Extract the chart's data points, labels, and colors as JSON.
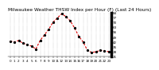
{
  "title": "Milwaukee Weather THSW Index per Hour (F) (Last 24 Hours)",
  "hours": [
    0,
    1,
    2,
    3,
    4,
    5,
    6,
    7,
    8,
    9,
    10,
    11,
    12,
    13,
    14,
    15,
    16,
    17,
    18,
    19,
    20,
    21,
    22,
    23
  ],
  "values": [
    43,
    42,
    44,
    40,
    38,
    36,
    32,
    44,
    52,
    60,
    70,
    76,
    82,
    78,
    72,
    62,
    50,
    42,
    30,
    27,
    28,
    30,
    29,
    28
  ],
  "ylim": [
    21,
    84
  ],
  "yticks": [
    21,
    28,
    35,
    42,
    49,
    56,
    63,
    70,
    77,
    84
  ],
  "xticks": [
    0,
    1,
    2,
    3,
    4,
    5,
    6,
    7,
    8,
    9,
    10,
    11,
    12,
    13,
    14,
    15,
    16,
    17,
    18,
    19,
    20,
    21,
    22,
    23
  ],
  "line_color": "#dd0000",
  "marker_color": "#000000",
  "bg_color": "#ffffff",
  "plot_bg_color": "#ffffff",
  "grid_color": "#888888",
  "title_color": "#000000",
  "title_fontsize": 4.2,
  "tick_fontsize": 3.0,
  "marker_size": 1.8,
  "linewidth": 0.8
}
